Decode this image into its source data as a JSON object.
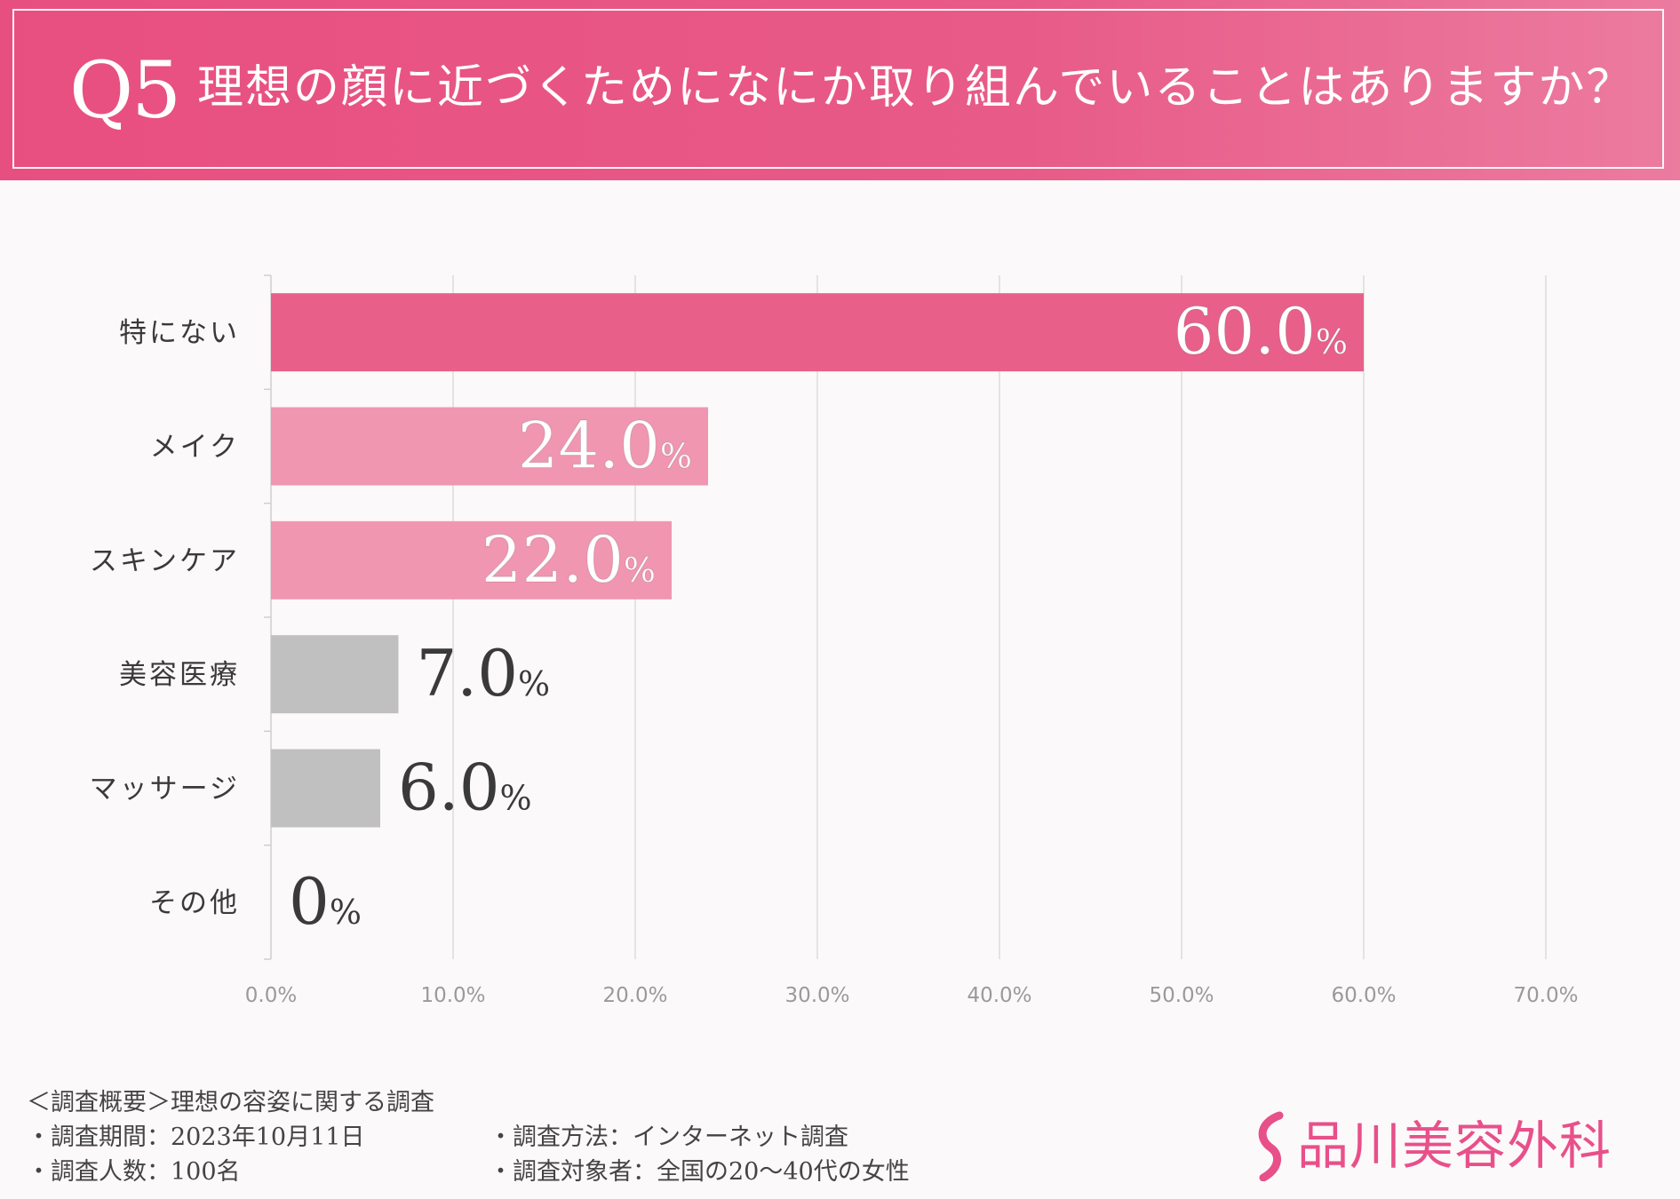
{
  "header": {
    "q_number": "Q5",
    "question": "理想の顔に近づくためになにか取り組んでいることはありますか？"
  },
  "colors": {
    "header_pink": "#e84f81",
    "bar_primary": "#e8608a",
    "bar_secondary": "#f096b0",
    "bar_gray": "#c0c0c0",
    "label_dark": "#3a3a3a",
    "logo_pink": "#e8508a"
  },
  "chart_data": {
    "type": "bar",
    "orientation": "horizontal",
    "categories": [
      "特にない",
      "メイク",
      "スキンケア",
      "美容医療",
      "マッサージ",
      "その他"
    ],
    "values": [
      60.0,
      24.0,
      22.0,
      7.0,
      6.0,
      0
    ],
    "value_labels": [
      "60.0",
      "24.0",
      "22.0",
      "7.0",
      "6.0",
      "0"
    ],
    "value_unit": "%",
    "xlim": [
      0,
      70
    ],
    "x_ticks": [
      "0.0%",
      "10.0%",
      "20.0%",
      "30.0%",
      "40.0%",
      "50.0%",
      "60.0%",
      "70.0%"
    ],
    "grid": true,
    "title": "理想の顔に近づくためになにか取り組んでいることはありますか？"
  },
  "footer": {
    "summary": "＜調査概要＞理想の容姿に関する調査",
    "period": "・調査期間：2023年10月11日",
    "count": "・調査人数：100名",
    "method": "・調査方法：インターネット調査",
    "target": "・調査対象者：全国の20〜40代の女性"
  },
  "logo": {
    "name": "品川美容外科",
    "icon": "s-curve-logo-icon"
  }
}
